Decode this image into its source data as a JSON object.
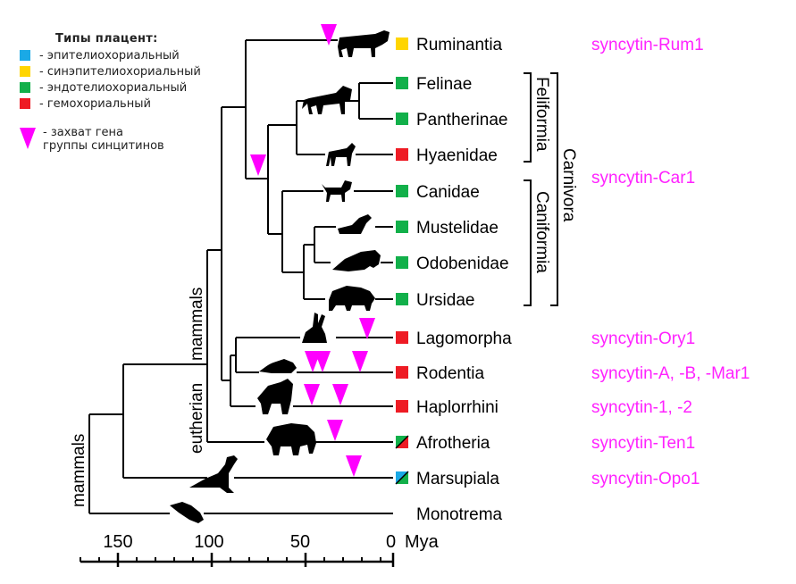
{
  "legend": {
    "title": "Типы плацент:",
    "items": [
      {
        "label": "- эпителиохориальный",
        "color": "#1aa9e6"
      },
      {
        "label": "- синэпителиохориальный",
        "color": "#ffd500"
      },
      {
        "label": "- эндотелиохориальный",
        "color": "#12b04a"
      },
      {
        "label": "- гемохориальный",
        "color": "#ee1b24"
      }
    ],
    "capture_line1": "- захват гена",
    "capture_line2": "группы синцитинов"
  },
  "taxa": {
    "ruminantia": "Ruminantia",
    "felinae": "Felinae",
    "pantherinae": "Pantherinae",
    "hyaenidae": "Hyaenidae",
    "canidae": "Canidae",
    "mustelidae": "Mustelidae",
    "odobenidae": "Odobenidae",
    "ursidae": "Ursidae",
    "lagomorpha": "Lagomorpha",
    "rodentia": "Rodentia",
    "haplorrhini": "Haplorrhini",
    "afrotheria": "Afrotheria",
    "marsupiala": "Marsupiala",
    "monotrema": "Monotrema"
  },
  "genes": {
    "rum": "syncytin-Rum1",
    "car": "syncytin-Car1",
    "ory": "syncytin-Ory1",
    "rod": "syncytin-A, -B, -Mar1",
    "hap": "syncytin-1, -2",
    "ten": "syncytin-Ten1",
    "opo": "syncytin-Opo1"
  },
  "groups": {
    "feliformia": "Feliformia",
    "caniformia": "Caniformia",
    "carnivora": "Carnivora",
    "eutherian": "eutherian",
    "mammals_eutherian": "mammals",
    "mammals": "mammals"
  },
  "axis": {
    "ticks": [
      "150",
      "100",
      "50",
      "0"
    ],
    "unit": "Mya"
  },
  "colors": {
    "epithelio": "#1aa9e6",
    "synepithelio": "#ffd500",
    "endothelio": "#12b04a",
    "hemo": "#ee1b24",
    "capture": "#ff00ff",
    "gene_text": "#ff22ff"
  }
}
